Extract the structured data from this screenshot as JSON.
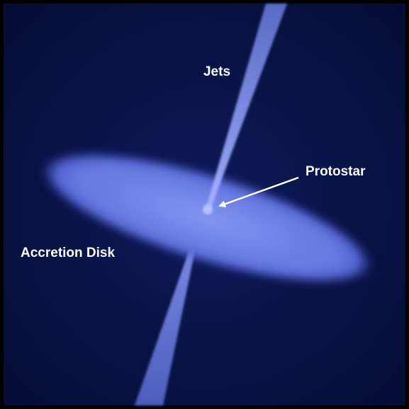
{
  "labels": {
    "jets": "Jets",
    "protostar": "Protostar",
    "accretion_disk": "Accretion Disk"
  }
}
